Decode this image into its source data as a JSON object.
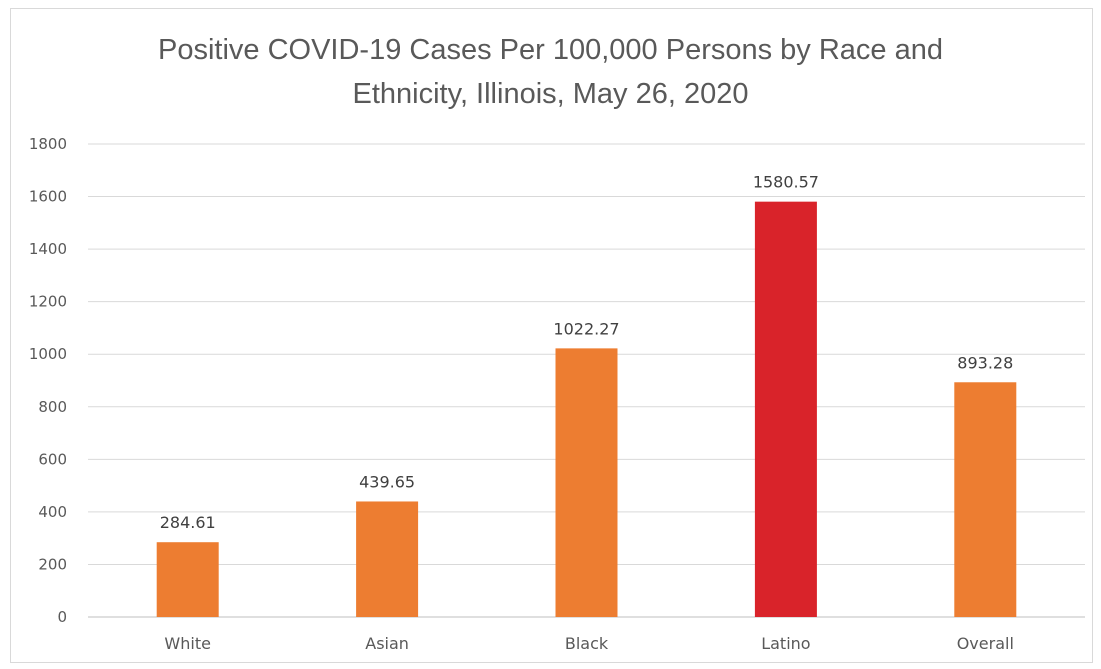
{
  "chart_data": {
    "type": "bar",
    "title_lines": [
      "Positive COVID-19 Cases Per 100,000 Persons by Race and",
      "Ethnicity, Illinois, May 26, 2020"
    ],
    "categories": [
      "White",
      "Asian",
      "Black",
      "Latino",
      "Overall"
    ],
    "values": [
      284.61,
      439.65,
      1022.27,
      1580.57,
      893.28
    ],
    "data_labels": [
      "284.61",
      "439.65",
      "1022.27",
      "1580.57",
      "893.28"
    ],
    "bar_colors": [
      "#ed7d31",
      "#ed7d31",
      "#ed7d31",
      "#d9232a",
      "#ed7d31"
    ],
    "ylim": [
      0,
      1800
    ],
    "yticks": [
      0,
      200,
      400,
      600,
      800,
      1000,
      1200,
      1400,
      1600,
      1800
    ],
    "grid": true,
    "xlabel": "",
    "ylabel": ""
  }
}
